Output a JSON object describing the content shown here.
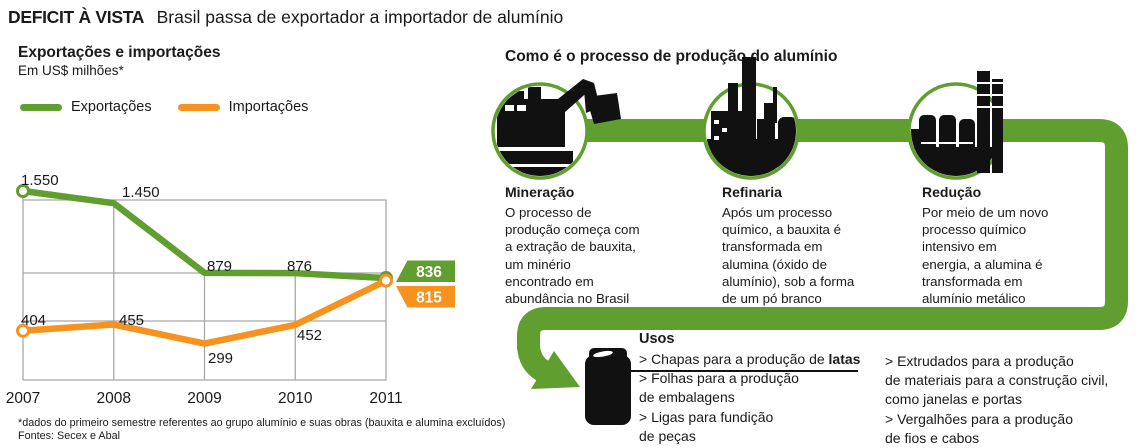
{
  "colors": {
    "green": "#5F9E2F",
    "orange": "#F6921E",
    "ink": "#1a1a1a",
    "grid": "#a8a8a8",
    "silhouette": "#111111"
  },
  "header": {
    "kicker": "DEFICIT À VISTA",
    "title": "Brasil passa de exportador a importador de alumínio"
  },
  "chart": {
    "title": "Exportações e importações",
    "subtitle": "Em US$ milhões*",
    "legend": [
      {
        "label": "Exportações"
      },
      {
        "label": "Importações"
      }
    ],
    "footnote": [
      "*dados do primeiro semestre referentes ao grupo alumínio e suas obras (bauxita e alumina excluídos)",
      "Fontes: Secex e Abal"
    ]
  },
  "chart_data": {
    "type": "line",
    "title": "Exportações e importações",
    "ylabel": "US$ milhões",
    "x": [
      "2007",
      "2008",
      "2009",
      "2010",
      "2011"
    ],
    "series": [
      {
        "name": "Exportações",
        "color": "#5F9E2F",
        "values": [
          1550,
          1450,
          879,
          876,
          836
        ],
        "point_labels": [
          "1.550",
          "1.450",
          "879",
          "876",
          "836"
        ]
      },
      {
        "name": "Importações",
        "color": "#F6921E",
        "values": [
          404,
          455,
          299,
          452,
          815
        ],
        "point_labels": [
          "404",
          "455",
          "299",
          "452",
          "815"
        ]
      }
    ],
    "end_badges": [
      {
        "series": "Exportações",
        "label": "836",
        "color": "#5F9E2F"
      },
      {
        "series": "Importações",
        "label": "815",
        "color": "#F6921E"
      }
    ],
    "ylim": [
      0,
      1650
    ],
    "grid": "gray reference lines, vertical line per year",
    "legend_position": "top-left"
  },
  "process": {
    "title": "Como é o processo de produção do alumínio",
    "steps": [
      {
        "title": "Mineração",
        "icon": "excavator-icon",
        "lines": [
          "O processo de",
          "produção começa com",
          "a extração de bauxita,",
          "um minério",
          "encontrado em",
          "abundância no Brasil"
        ]
      },
      {
        "title": "Refinaria",
        "icon": "refinery-icon",
        "lines": [
          "Após um processo",
          "químico, a bauxita é",
          "transformada em",
          "alumina (óxido de",
          "alumínio), sob a forma",
          "de um pó branco"
        ]
      },
      {
        "title": "Redução",
        "icon": "reduction-plant-icon",
        "lines": [
          "Por meio de um novo",
          "processo químico",
          "intensivo em",
          "energia, a alumina é",
          "transformada em",
          "alumínio metálico"
        ]
      }
    ],
    "uses": {
      "title": "Usos",
      "first_item": {
        "text": "> Chapas para a produção de ",
        "bold": "latas"
      },
      "left_lines": [
        "> Folhas para a produção",
        "de embalagens",
        "> Ligas para fundição",
        "de peças"
      ],
      "right_lines": [
        "> Extrudados para a produção",
        "de materiais para a construção civil,",
        "como janelas e portas",
        "> Vergalhões para a produção",
        "de fios e cabos"
      ]
    }
  }
}
